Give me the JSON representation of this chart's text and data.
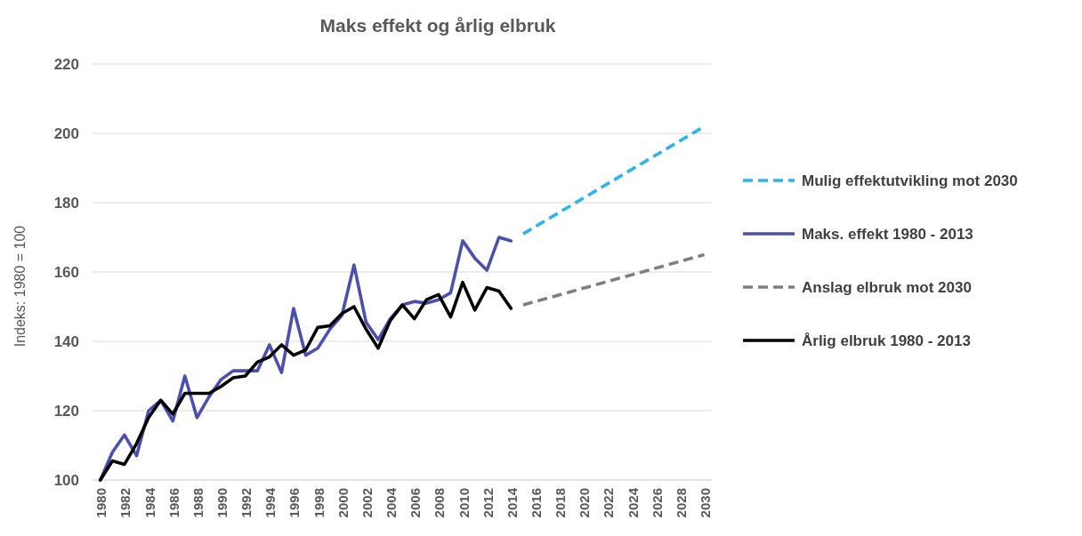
{
  "chart_data": {
    "type": "line",
    "title": "Maks effekt og årlig elbruk",
    "ylabel": "Indeks: 1980 = 100",
    "xlim": [
      1979.4,
      2030.6
    ],
    "xticks": [
      1980,
      1982,
      1984,
      1986,
      1988,
      1990,
      1992,
      1994,
      1996,
      1998,
      2000,
      2002,
      2004,
      2006,
      2008,
      2010,
      2012,
      2014,
      2016,
      2018,
      2020,
      2022,
      2024,
      2026,
      2028,
      2030
    ],
    "ylim": [
      100,
      220
    ],
    "yticks": [
      100,
      120,
      140,
      160,
      180,
      200,
      220
    ],
    "grid": "y",
    "legend": "right",
    "series": [
      {
        "name": "Mulig effektutvikling mot 2030",
        "color": "#2bb5e8",
        "line_style": "dashed",
        "x": [
          2015,
          2030
        ],
        "values": [
          171,
          202
        ]
      },
      {
        "name": "Maks. effekt 1980 - 2013",
        "color": "#4b50ae",
        "line_style": "solid",
        "x": [
          1980,
          1981,
          1982,
          1983,
          1984,
          1985,
          1986,
          1987,
          1988,
          1989,
          1990,
          1991,
          1992,
          1993,
          1994,
          1995,
          1996,
          1997,
          1998,
          1999,
          2000,
          2001,
          2002,
          2003,
          2004,
          2005,
          2006,
          2007,
          2008,
          2009,
          2010,
          2011,
          2012,
          2013,
          2014
        ],
        "values": [
          100,
          108,
          113,
          107,
          120,
          123,
          117,
          130,
          118,
          124,
          129,
          131.5,
          131.5,
          131.5,
          139,
          131,
          149.5,
          136,
          138,
          143.5,
          147.5,
          162,
          145.5,
          140.5,
          146.5,
          150.5,
          151.5,
          151,
          152,
          154,
          169,
          164,
          160.5,
          170,
          169
        ]
      },
      {
        "name": "Anslag elbruk mot 2030",
        "color": "#7f7f7f",
        "line_style": "dashed",
        "x": [
          2015,
          2030
        ],
        "values": [
          150.5,
          165
        ]
      },
      {
        "name": "Årlig elbruk 1980 - 2013",
        "color": "#000000",
        "line_style": "solid",
        "x": [
          1980,
          1981,
          1982,
          1983,
          1984,
          1985,
          1986,
          1987,
          1988,
          1989,
          1990,
          1991,
          1992,
          1993,
          1994,
          1995,
          1996,
          1997,
          1998,
          1999,
          2000,
          2001,
          2002,
          2003,
          2004,
          2005,
          2006,
          2007,
          2008,
          2009,
          2010,
          2011,
          2012,
          2013,
          2014
        ],
        "values": [
          100,
          105.5,
          104.5,
          110.5,
          118,
          123,
          119,
          125,
          125,
          125,
          127,
          129.5,
          130,
          134,
          135.5,
          139,
          136,
          137.5,
          144,
          144.5,
          148,
          150,
          143.5,
          138,
          146,
          150.5,
          146.5,
          152,
          153.5,
          147,
          157,
          149,
          155.5,
          154.5,
          149.5
        ]
      }
    ]
  }
}
